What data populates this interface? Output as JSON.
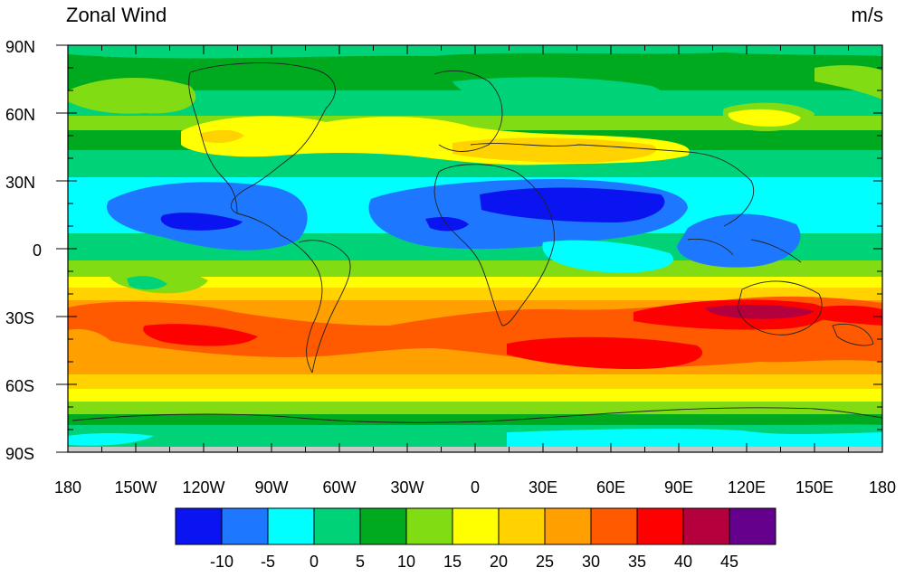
{
  "title": "Zonal Wind",
  "units": "m/s",
  "lat_labels": [
    "90N",
    "60N",
    "30N",
    "0",
    "30S",
    "60S",
    "90S"
  ],
  "lon_labels": [
    "180",
    "150W",
    "120W",
    "90W",
    "60W",
    "30W",
    "0",
    "30E",
    "60E",
    "90E",
    "120E",
    "150E",
    "180"
  ],
  "colorbar": {
    "colors": [
      "#0a14f0",
      "#1e78ff",
      "#00ffff",
      "#00d278",
      "#00aa1e",
      "#82dc14",
      "#ffff00",
      "#ffd200",
      "#ffa000",
      "#ff5a00",
      "#ff0000",
      "#b4003c",
      "#64008c"
    ],
    "labels": [
      "-10",
      "-5",
      "0",
      "5",
      "10",
      "15",
      "20",
      "25",
      "30",
      "35",
      "40",
      "45"
    ]
  }
}
